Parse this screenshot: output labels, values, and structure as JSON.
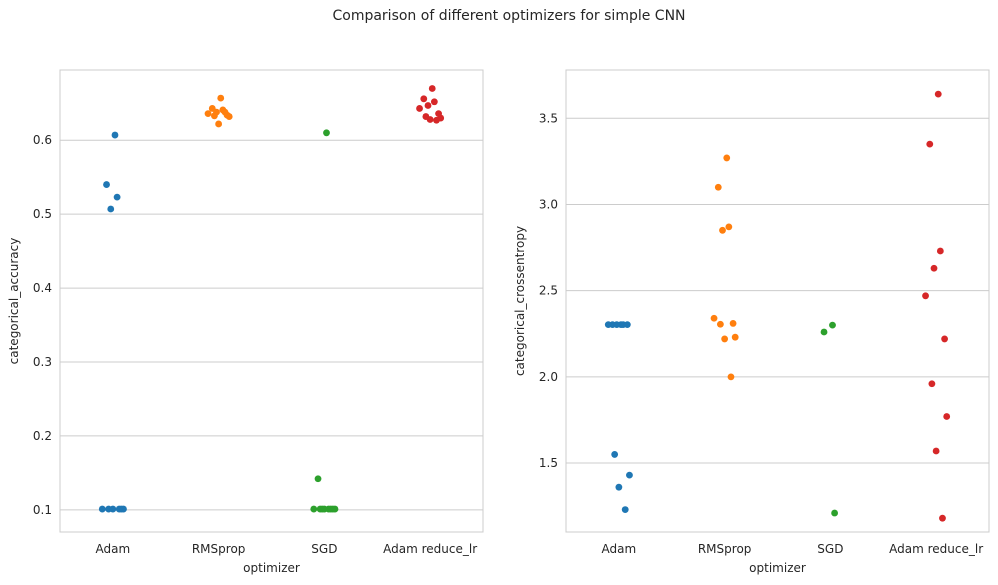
{
  "figure": {
    "suptitle": "Comparison of different optimizers for simple CNN"
  },
  "colors": {
    "Adam": "#1f77b4",
    "RMSprop": "#ff7f0e",
    "SGD": "#2ca02c",
    "Adam reduce_lr": "#d62728",
    "grid": "#cccccc",
    "frame": "#cccccc"
  },
  "chart_data": [
    {
      "type": "scatter",
      "subtype": "stripplot",
      "xlabel": "optimizer",
      "ylabel": "categorical_accuracy",
      "categories": [
        "Adam",
        "RMSprop",
        "SGD",
        "Adam reduce_lr"
      ],
      "ylim": [
        0.07,
        0.695
      ],
      "yticks": [
        0.1,
        0.2,
        0.3,
        0.4,
        0.5,
        0.6
      ],
      "ytick_labels": [
        "0.1",
        "0.2",
        "0.3",
        "0.4",
        "0.5",
        "0.6"
      ],
      "grid": "horizontal",
      "series": [
        {
          "category": "Adam",
          "values": [
            0.607,
            0.54,
            0.523,
            0.507,
            0.101,
            0.101,
            0.101,
            0.101,
            0.101,
            0.101
          ]
        },
        {
          "category": "RMSprop",
          "values": [
            0.657,
            0.643,
            0.641,
            0.638,
            0.636,
            0.634,
            0.633,
            0.632,
            0.622,
            0.638
          ]
        },
        {
          "category": "SGD",
          "values": [
            0.61,
            0.142,
            0.101,
            0.101,
            0.101,
            0.101,
            0.101,
            0.101,
            0.101,
            0.101
          ]
        },
        {
          "category": "Adam reduce_lr",
          "values": [
            0.67,
            0.656,
            0.652,
            0.647,
            0.643,
            0.636,
            0.632,
            0.63,
            0.628,
            0.627
          ]
        }
      ]
    },
    {
      "type": "scatter",
      "subtype": "stripplot",
      "xlabel": "optimizer",
      "ylabel": "categorical_crossentropy",
      "categories": [
        "Adam",
        "RMSprop",
        "SGD",
        "Adam reduce_lr"
      ],
      "ylim": [
        1.1,
        3.78
      ],
      "yticks": [
        1.5,
        2.0,
        2.5,
        3.0,
        3.5
      ],
      "ytick_labels": [
        "1.5",
        "2.0",
        "2.5",
        "3.0",
        "3.5"
      ],
      "grid": "horizontal",
      "series": [
        {
          "category": "Adam",
          "values": [
            2.303,
            2.303,
            2.303,
            2.303,
            2.303,
            2.303,
            1.55,
            1.43,
            1.36,
            1.23
          ]
        },
        {
          "category": "RMSprop",
          "values": [
            3.27,
            3.1,
            2.87,
            2.85,
            2.34,
            2.31,
            2.305,
            2.23,
            2.22,
            2.0
          ]
        },
        {
          "category": "SGD",
          "values": [
            2.3,
            2.26,
            1.21
          ]
        },
        {
          "category": "Adam reduce_lr",
          "values": [
            3.64,
            3.35,
            2.73,
            2.63,
            2.47,
            2.22,
            1.96,
            1.77,
            1.57,
            1.18
          ]
        }
      ]
    }
  ]
}
